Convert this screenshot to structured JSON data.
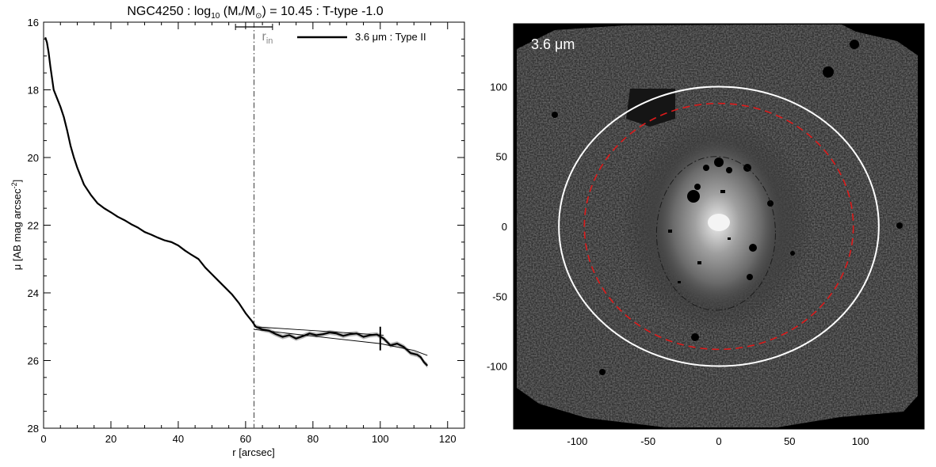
{
  "chart_data": [
    {
      "type": "line",
      "title_parts": {
        "galaxy": "NGC4250",
        "sep1": " : log",
        "log_sub": "10",
        "mass_open": " (M",
        "mass_sub1": "*",
        "mass_slash": "/M",
        "mass_sub2": "⊙",
        "mass_close": ") = 10.45",
        "ttype": " : T-type -1.0"
      },
      "xlabel": "r [arcsec]",
      "ylabel_parts": {
        "main": "μ [AB mag arcsec",
        "sup": "-2",
        "close": "]"
      },
      "xlim": [
        0,
        125
      ],
      "ylim": [
        28,
        16
      ],
      "y_reversed": true,
      "xticks": [
        0,
        20,
        40,
        60,
        80,
        100,
        120
      ],
      "xtick_labels": [
        "0",
        "20",
        "40",
        "60",
        "80",
        "100",
        "120"
      ],
      "yticks": [
        16,
        18,
        20,
        22,
        24,
        26,
        28
      ],
      "ytick_labels": [
        "16",
        "18",
        "20",
        "22",
        "24",
        "26",
        "28"
      ],
      "legend": {
        "label": "3.6 μm : Type II",
        "placement": "top-right"
      },
      "break_radius": {
        "label_main": "r",
        "label_sub": "in",
        "value": 62.5,
        "err_low": 57,
        "err_high": 68
      },
      "outer_marker": {
        "r": 100,
        "mu_low": 25.0,
        "mu_high": 25.7
      },
      "series": [
        {
          "name": "3.6 μm : Type II",
          "x": [
            0.5,
            1,
            1.5,
            2,
            3,
            4,
            5,
            6,
            7,
            8,
            9,
            10,
            11,
            12,
            14,
            16,
            18,
            20,
            22,
            24,
            26,
            28,
            30,
            32,
            34,
            36,
            38,
            40,
            42,
            44,
            46,
            48,
            50,
            52,
            54,
            56,
            58,
            60,
            62,
            63,
            65,
            67,
            69,
            71,
            73,
            75,
            77,
            79,
            81,
            83,
            85,
            87,
            89,
            91,
            93,
            95,
            97,
            99,
            101,
            103,
            105,
            107,
            109,
            111,
            112,
            113,
            114
          ],
          "y": [
            16.45,
            16.6,
            16.9,
            17.3,
            18.0,
            18.25,
            18.5,
            18.8,
            19.2,
            19.65,
            20.0,
            20.3,
            20.55,
            20.8,
            21.1,
            21.35,
            21.5,
            21.62,
            21.75,
            21.85,
            21.97,
            22.07,
            22.2,
            22.28,
            22.37,
            22.45,
            22.5,
            22.6,
            22.75,
            22.88,
            23.0,
            23.25,
            23.45,
            23.65,
            23.85,
            24.05,
            24.3,
            24.6,
            24.85,
            25.0,
            25.08,
            25.12,
            25.22,
            25.3,
            25.25,
            25.35,
            25.28,
            25.2,
            25.25,
            25.22,
            25.17,
            25.2,
            25.27,
            25.22,
            25.2,
            25.3,
            25.25,
            25.23,
            25.35,
            25.55,
            25.5,
            25.6,
            25.78,
            25.83,
            25.9,
            26.05,
            26.15
          ]
        },
        {
          "name": "",
          "x": [
            62.5,
            101
          ],
          "y": [
            25.0,
            25.25
          ]
        },
        {
          "name": "",
          "x": [
            62.5,
            80,
            100,
            110,
            114
          ],
          "y": [
            25.08,
            25.28,
            25.5,
            25.7,
            25.85
          ]
        }
      ]
    },
    {
      "type": "image",
      "label": "3.6 μm",
      "xlim": [
        -145,
        145
      ],
      "ylim": [
        -145,
        145
      ],
      "xticks": [
        -100,
        -50,
        0,
        50,
        100
      ],
      "xtick_labels": [
        "-100",
        "-50",
        "0",
        "50",
        "100"
      ],
      "yticks": [
        100,
        50,
        0,
        -50,
        -100
      ],
      "ytick_labels": [
        "100",
        "50",
        "0",
        "-50",
        "-100"
      ],
      "ellipses": [
        {
          "name": "outer-ellipse",
          "cx": 0,
          "cy": 0,
          "rx": 113,
          "ry": 100,
          "color": "#ffffff",
          "style": "solid"
        },
        {
          "name": "break-ellipse",
          "cx": 0,
          "cy": 0,
          "rx": 95,
          "ry": 88,
          "color": "#dd1a1a",
          "style": "dashed"
        },
        {
          "name": "inner-ellipse",
          "cx": -2,
          "cy": -5,
          "rx": 42,
          "ry": 55,
          "color": "#111111",
          "style": "dashdot"
        }
      ],
      "colors": {
        "background": "#000000",
        "noise": "#3a3a3a",
        "galaxy_core": "#f0f0f0"
      }
    }
  ]
}
